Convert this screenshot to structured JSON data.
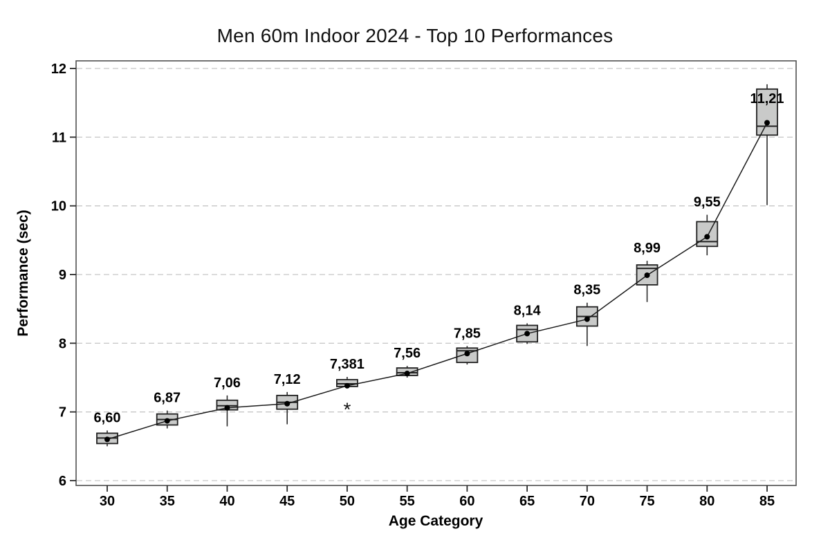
{
  "chart_data": {
    "type": "boxplot",
    "title": "Men 60m Indoor 2024 - Top 10 Performances",
    "xlabel": "Age Category",
    "ylabel": "Performance (sec)",
    "categories": [
      "30",
      "35",
      "40",
      "45",
      "50",
      "55",
      "60",
      "65",
      "70",
      "75",
      "80",
      "85"
    ],
    "yticks": [
      6,
      7,
      8,
      9,
      10,
      11,
      12
    ],
    "ylim": [
      5.93,
      12.1
    ],
    "grid": "horizontal-dashed",
    "legend": "none",
    "decimal_separator": ",",
    "mean_marker": "dot",
    "outlier_marker": "*",
    "boxes": [
      {
        "age": "30",
        "label": "6,60",
        "mean": 6.6,
        "median": 6.62,
        "q1": 6.54,
        "q3": 6.69,
        "whisker_low": 6.5,
        "whisker_high": 6.73,
        "outliers": []
      },
      {
        "age": "35",
        "label": "6,87",
        "mean": 6.87,
        "median": 6.89,
        "q1": 6.81,
        "q3": 6.97,
        "whisker_low": 6.76,
        "whisker_high": 7.02,
        "outliers": []
      },
      {
        "age": "40",
        "label": "7,06",
        "mean": 7.06,
        "median": 7.09,
        "q1": 7.03,
        "q3": 7.17,
        "whisker_low": 6.79,
        "whisker_high": 7.24,
        "outliers": []
      },
      {
        "age": "45",
        "label": "7,12",
        "mean": 7.12,
        "median": 7.14,
        "q1": 7.04,
        "q3": 7.24,
        "whisker_low": 6.82,
        "whisker_high": 7.29,
        "outliers": []
      },
      {
        "age": "50",
        "label": "7,381",
        "mean": 7.381,
        "median": 7.41,
        "q1": 7.37,
        "q3": 7.47,
        "whisker_low": 7.37,
        "whisker_high": 7.51,
        "outliers": [
          7.08
        ]
      },
      {
        "age": "55",
        "label": "7,56",
        "mean": 7.56,
        "median": 7.57,
        "q1": 7.53,
        "q3": 7.64,
        "whisker_low": 7.5,
        "whisker_high": 7.67,
        "outliers": []
      },
      {
        "age": "60",
        "label": "7,85",
        "mean": 7.85,
        "median": 7.89,
        "q1": 7.72,
        "q3": 7.93,
        "whisker_low": 7.69,
        "whisker_high": 7.96,
        "outliers": []
      },
      {
        "age": "65",
        "label": "8,14",
        "mean": 8.14,
        "median": 8.2,
        "q1": 8.02,
        "q3": 8.26,
        "whisker_low": 7.99,
        "whisker_high": 8.29,
        "outliers": []
      },
      {
        "age": "70",
        "label": "8,35",
        "mean": 8.35,
        "median": 8.39,
        "q1": 8.25,
        "q3": 8.53,
        "whisker_low": 7.96,
        "whisker_high": 8.59,
        "outliers": []
      },
      {
        "age": "75",
        "label": "8,99",
        "mean": 8.99,
        "median": 9.09,
        "q1": 8.85,
        "q3": 9.14,
        "whisker_low": 8.6,
        "whisker_high": 9.2,
        "outliers": []
      },
      {
        "age": "80",
        "label": "9,55",
        "mean": 9.55,
        "median": 9.48,
        "q1": 9.41,
        "q3": 9.77,
        "whisker_low": 9.28,
        "whisker_high": 9.87,
        "outliers": []
      },
      {
        "age": "85",
        "label": "11,21",
        "mean": 11.21,
        "median": 11.16,
        "q1": 11.03,
        "q3": 11.7,
        "whisker_low": 10.01,
        "whisker_high": 11.77,
        "outliers": []
      }
    ]
  },
  "colors": {
    "background": "#ffffff",
    "text": "#000000",
    "title_text": "#111111",
    "grid": "#c6c6c6",
    "plot_border": "#4f4f4f",
    "tick": "#2a2a2a",
    "box_fill": "#c9cac9",
    "box_stroke": "#1f1f1f",
    "median": "#222222",
    "whisker": "#2a2a2a",
    "mean_line": "#1a1a1a",
    "mean_dot": "#000000",
    "outlier": "#111111"
  }
}
